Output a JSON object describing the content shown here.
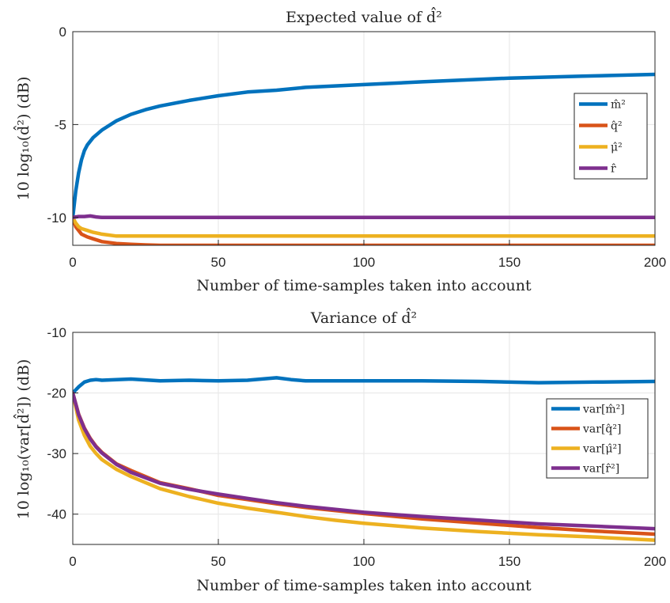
{
  "chart_data": [
    {
      "type": "line",
      "title": "Expected value of d̂²",
      "xlabel": "Number of time-samples taken into account",
      "ylabel": "10 log₁₀(d̂²) (dB)",
      "xlim": [
        0,
        200
      ],
      "ylim": [
        -11.5,
        0
      ],
      "xticks": [
        0,
        50,
        100,
        150,
        200
      ],
      "yticks": [
        0,
        -5,
        -10
      ],
      "ytick_labels": [
        "0",
        "-5",
        "-10"
      ],
      "grid": true,
      "legend_position": "right",
      "series": [
        {
          "name": "m̂²",
          "color": "#0072BD",
          "x": [
            0,
            1,
            2,
            3,
            4,
            5,
            7,
            10,
            15,
            20,
            25,
            30,
            40,
            50,
            60,
            70,
            80,
            100,
            120,
            150,
            175,
            200
          ],
          "y": [
            -10,
            -8.6,
            -7.6,
            -6.9,
            -6.4,
            -6.1,
            -5.7,
            -5.3,
            -4.8,
            -4.45,
            -4.2,
            -4.0,
            -3.7,
            -3.45,
            -3.25,
            -3.15,
            -3.0,
            -2.85,
            -2.7,
            -2.5,
            -2.4,
            -2.3
          ]
        },
        {
          "name": "q̂²",
          "color": "#D95319",
          "x": [
            0,
            1,
            2,
            3,
            5,
            7,
            10,
            15,
            20,
            25,
            30,
            50,
            100,
            150,
            200
          ],
          "y": [
            -10,
            -10.5,
            -10.7,
            -10.9,
            -11.05,
            -11.15,
            -11.3,
            -11.4,
            -11.45,
            -11.48,
            -11.5,
            -11.5,
            -11.5,
            -11.5,
            -11.5
          ]
        },
        {
          "name": "μ̂²",
          "color": "#EDB120",
          "x": [
            0,
            1,
            2,
            3,
            5,
            7,
            10,
            15,
            20,
            30,
            50,
            100,
            150,
            200
          ],
          "y": [
            -10,
            -10.3,
            -10.5,
            -10.6,
            -10.7,
            -10.8,
            -10.9,
            -11.0,
            -11.0,
            -11.0,
            -11.0,
            -11.0,
            -11.0,
            -11.0
          ]
        },
        {
          "name": "r̂",
          "color": "#7E2F8E",
          "x": [
            0,
            2,
            4,
            6,
            8,
            10,
            15,
            20,
            50,
            100,
            150,
            200
          ],
          "y": [
            -10,
            -9.95,
            -9.95,
            -9.92,
            -9.97,
            -10.0,
            -10.0,
            -10.0,
            -10.0,
            -10.0,
            -10.0,
            -10.0
          ]
        }
      ]
    },
    {
      "type": "line",
      "title": "Variance of d̂²",
      "xlabel": "Number of time-samples taken into account",
      "ylabel": "10 log₁₀(var[d̂²]) (dB)",
      "xlim": [
        0,
        200
      ],
      "ylim": [
        -45,
        -10
      ],
      "xticks": [
        0,
        50,
        100,
        150,
        200
      ],
      "yticks": [
        -10,
        -20,
        -30,
        -40
      ],
      "ytick_labels": [
        "-10",
        "-20",
        "-30",
        "-40"
      ],
      "grid": true,
      "legend_position": "right",
      "series": [
        {
          "name": "var[m̂²]",
          "color": "#0072BD",
          "x": [
            0,
            2,
            4,
            6,
            8,
            10,
            15,
            20,
            30,
            40,
            50,
            60,
            70,
            75,
            80,
            100,
            120,
            140,
            160,
            180,
            200
          ],
          "y": [
            -20,
            -19,
            -18.2,
            -17.9,
            -17.8,
            -17.9,
            -17.8,
            -17.7,
            -18,
            -17.9,
            -18,
            -17.9,
            -17.5,
            -17.8,
            -18,
            -18,
            -18,
            -18.1,
            -18.3,
            -18.2,
            -18.1
          ]
        },
        {
          "name": "var[q̂²]",
          "color": "#D95319",
          "x": [
            0,
            2,
            4,
            6,
            8,
            10,
            15,
            20,
            30,
            40,
            50,
            60,
            70,
            80,
            90,
            100,
            120,
            140,
            160,
            180,
            200
          ],
          "y": [
            -20,
            -23.5,
            -25.8,
            -27.5,
            -28.8,
            -29.8,
            -31.7,
            -32.8,
            -34.8,
            -35.8,
            -36.9,
            -37.6,
            -38.3,
            -38.9,
            -39.4,
            -39.9,
            -40.8,
            -41.5,
            -42.2,
            -42.8,
            -43.3
          ]
        },
        {
          "name": "var[μ̂²]",
          "color": "#EDB120",
          "x": [
            0,
            2,
            4,
            6,
            8,
            10,
            15,
            20,
            30,
            40,
            50,
            60,
            70,
            80,
            90,
            100,
            120,
            140,
            160,
            180,
            200
          ],
          "y": [
            -20,
            -24.5,
            -27,
            -28.8,
            -30,
            -31,
            -32.6,
            -33.8,
            -35.8,
            -37.1,
            -38.2,
            -39,
            -39.7,
            -40.4,
            -41,
            -41.5,
            -42.3,
            -42.9,
            -43.4,
            -43.8,
            -44.3
          ]
        },
        {
          "name": "var[r̂²]",
          "color": "#7E2F8E",
          "x": [
            0,
            2,
            4,
            6,
            8,
            10,
            15,
            20,
            30,
            40,
            50,
            60,
            70,
            80,
            90,
            100,
            120,
            140,
            160,
            180,
            200
          ],
          "y": [
            -20,
            -23.6,
            -25.9,
            -27.6,
            -28.9,
            -29.9,
            -31.8,
            -33.1,
            -34.9,
            -35.9,
            -36.7,
            -37.4,
            -38.1,
            -38.7,
            -39.2,
            -39.7,
            -40.4,
            -41.0,
            -41.6,
            -42,
            -42.4
          ]
        }
      ]
    }
  ]
}
